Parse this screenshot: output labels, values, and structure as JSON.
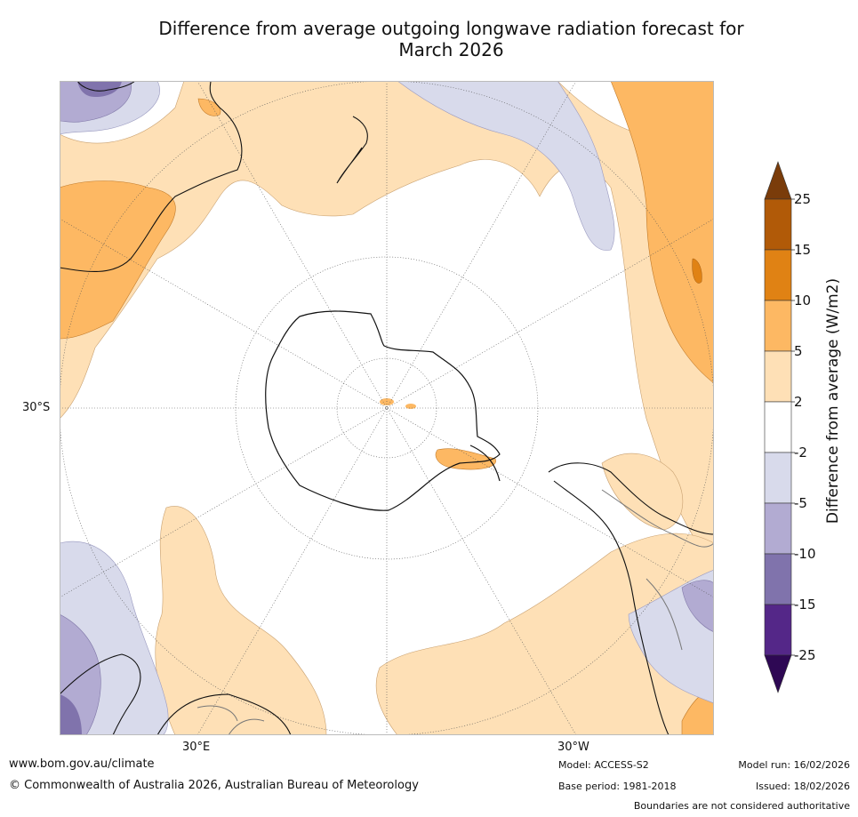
{
  "title": {
    "line1": "Difference from average outgoing longwave radiation forecast for",
    "line2": "March 2026"
  },
  "map": {
    "projection": "south-polar-stereographic",
    "lat_label": "30°S",
    "lon_labels": [
      "30°E",
      "30°W"
    ]
  },
  "colorbar": {
    "label": "Difference from average (W/m2)",
    "ticks": [
      "25",
      "15",
      "10",
      "5",
      "2",
      "-2",
      "-5",
      "-10",
      "-15",
      "-25"
    ],
    "top_arrow_color": "#7a3c0a",
    "bottom_arrow_color": "#2e0854",
    "bins": [
      {
        "range": "15 to 25",
        "color": "#b15a08"
      },
      {
        "range": "10 to 15",
        "color": "#e08214"
      },
      {
        "range": "5 to 10",
        "color": "#fdb863"
      },
      {
        "range": "2 to 5",
        "color": "#fee0b6"
      },
      {
        "range": "-2 to 2",
        "color": "#ffffff"
      },
      {
        "range": "-5 to -2",
        "color": "#d8daeb"
      },
      {
        "range": "-10 to -5",
        "color": "#b2abd2"
      },
      {
        "range": "-15 to -10",
        "color": "#8073ac"
      },
      {
        "range": "-25 to -15",
        "color": "#542788"
      }
    ]
  },
  "footer": {
    "url": "www.bom.gov.au/climate",
    "copyright": "© Commonwealth of Australia 2026, Australian Bureau of Meteorology",
    "model": "Model: ACCESS-S2",
    "model_run": "Model run: 16/02/2026",
    "base_period": "Base period: 1981-2018",
    "issued": "Issued: 18/02/2026",
    "disclaimer": "Boundaries are not considered authoritative"
  }
}
